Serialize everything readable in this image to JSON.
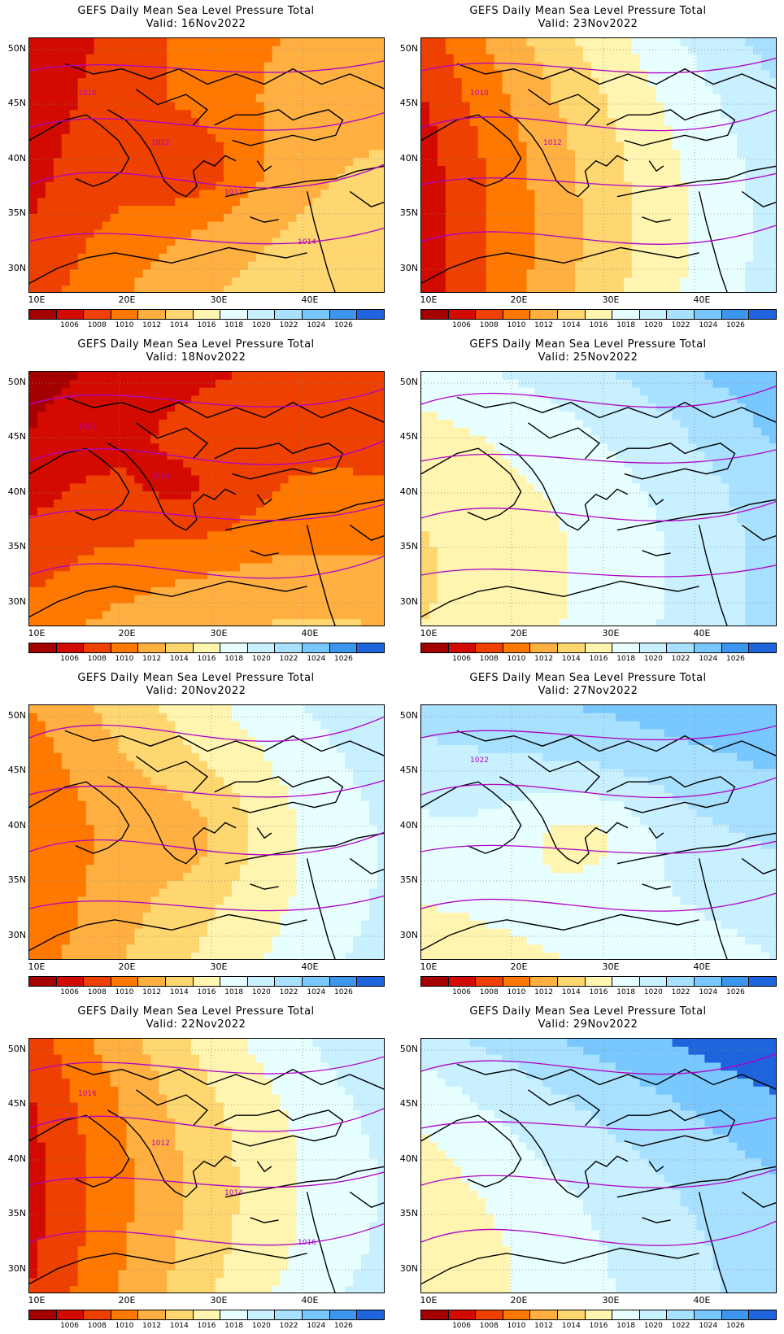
{
  "colorbar": {
    "colors": [
      "#a50000",
      "#d20a00",
      "#ee4000",
      "#ff7800",
      "#ffb040",
      "#ffd770",
      "#fff5b0",
      "#e8ffff",
      "#c8f0ff",
      "#a8e0ff",
      "#78c8ff",
      "#3c96f0",
      "#1e64dc"
    ],
    "labels": [
      "1006",
      "1008",
      "1010",
      "1012",
      "1014",
      "1016",
      "1018",
      "1020",
      "1022",
      "1024",
      "1026"
    ]
  },
  "axes": {
    "lat_labels": [
      "50N",
      "45N",
      "40N",
      "35N",
      "30N"
    ],
    "lon_labels": [
      "10E",
      "20E",
      "30E",
      "40E"
    ]
  },
  "contour_color": "#b000c8",
  "panels": [
    {
      "title": "GEFS Daily Mean Sea Level Pressure Total",
      "valid": "Valid:  16Nov2022",
      "field": {
        "base": 1013,
        "west": -6,
        "center": -3,
        "east": 1,
        "north": -1,
        "south": 2
      },
      "contour_labels": [
        "1010",
        "1012",
        "1012",
        "1014"
      ]
    },
    {
      "title": "GEFS Daily Mean Sea Level Pressure Total",
      "valid": "Valid:  23Nov2022",
      "field": {
        "base": 1015,
        "west": -9,
        "center": 0,
        "east": 5,
        "north": 3,
        "south": 1
      },
      "contour_labels": [
        "1010",
        "1012"
      ]
    },
    {
      "title": "GEFS Daily Mean Sea Level Pressure Total",
      "valid": "Valid:  18Nov2022",
      "field": {
        "base": 1011,
        "west": -4,
        "center": -2,
        "east": -1,
        "north": -2,
        "south": 4
      },
      "contour_labels": [
        "1012",
        "1014"
      ]
    },
    {
      "title": "GEFS Daily Mean Sea Level Pressure Total",
      "valid": "Valid:  25Nov2022",
      "field": {
        "base": 1017,
        "west": -2,
        "center": 0,
        "east": 5,
        "north": 4,
        "south": 1
      },
      "contour_labels": []
    },
    {
      "title": "GEFS Daily Mean Sea Level Pressure Total",
      "valid": "Valid:  20Nov2022",
      "field": {
        "base": 1015,
        "west": -6,
        "center": -2,
        "east": 4,
        "north": 3,
        "south": 2
      },
      "contour_labels": []
    },
    {
      "title": "GEFS Daily Mean Sea Level Pressure Total",
      "valid": "Valid:  27Nov2022",
      "field": {
        "base": 1020,
        "west": -1,
        "center": -3,
        "east": 2,
        "north": 4,
        "south": -2
      },
      "contour_labels": [
        "1022"
      ]
    },
    {
      "title": "GEFS Daily Mean Sea Level Pressure Total",
      "valid": "Valid:  22Nov2022",
      "field": {
        "base": 1015,
        "west": -9,
        "center": 0,
        "east": 4,
        "north": 3,
        "south": 2
      },
      "contour_labels": [
        "1016",
        "1012",
        "1014",
        "1016"
      ]
    },
    {
      "title": "GEFS Daily Mean Sea Level Pressure Total",
      "valid": "Valid:  29Nov2022",
      "field": {
        "base": 1020,
        "west": -4,
        "center": 0,
        "east": 3,
        "north": 5,
        "south": 0
      },
      "contour_labels": []
    }
  ]
}
